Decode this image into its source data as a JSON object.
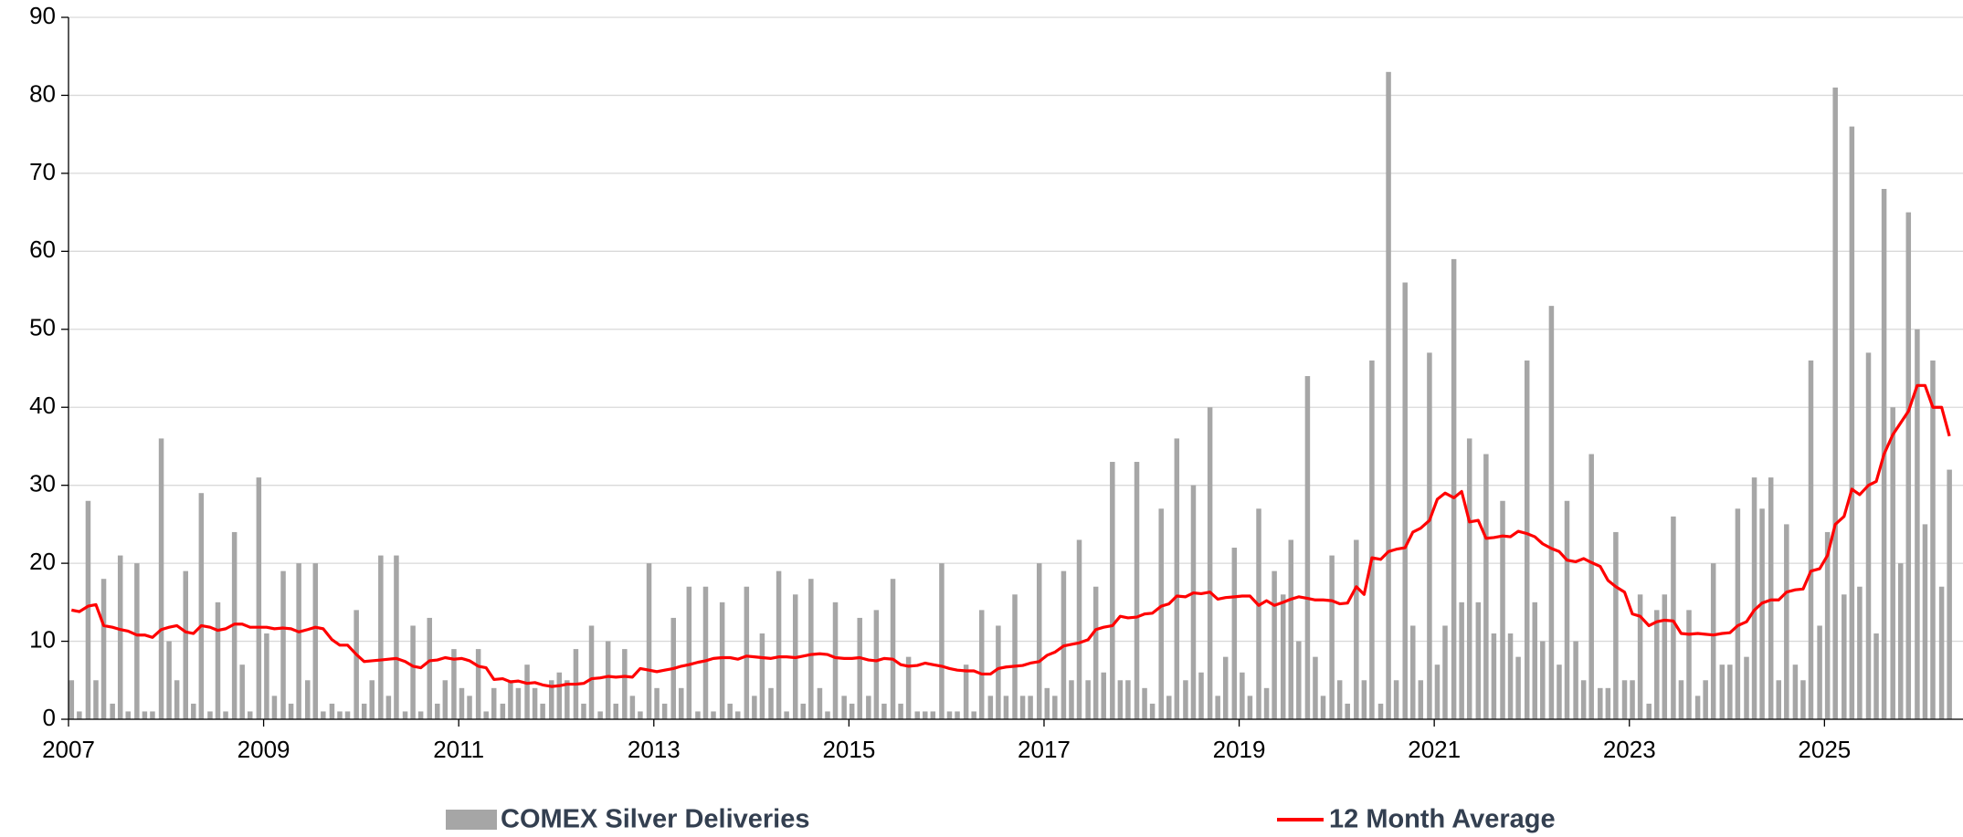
{
  "chart_data": {
    "type": "bar",
    "x": [
      2007,
      2007.08,
      2007.17,
      2007.25,
      2007.33,
      2007.42,
      2007.5,
      2007.58,
      2007.67,
      2007.75,
      2007.83,
      2007.92,
      2008,
      2008.08,
      2008.17,
      2008.25,
      2008.33,
      2008.42,
      2008.5,
      2008.58,
      2008.67,
      2008.75,
      2008.83,
      2008.92,
      2009,
      2009.08,
      2009.17,
      2009.25,
      2009.33,
      2009.42,
      2009.5,
      2009.58,
      2009.67,
      2009.75,
      2009.83,
      2009.92,
      2010,
      2010.08,
      2010.17,
      2010.25,
      2010.33,
      2010.42,
      2010.5,
      2010.58,
      2010.67,
      2010.75,
      2010.83,
      2010.92,
      2011,
      2011.08,
      2011.17,
      2011.25,
      2011.33,
      2011.42,
      2011.5,
      2011.58,
      2011.67,
      2011.75,
      2011.83,
      2011.92,
      2012,
      2012.08,
      2012.17,
      2012.25,
      2012.33,
      2012.42,
      2012.5,
      2012.58,
      2012.67,
      2012.75,
      2012.83,
      2012.92,
      2013,
      2013.08,
      2013.17,
      2013.25,
      2013.33,
      2013.42,
      2013.5,
      2013.58,
      2013.67,
      2013.75,
      2013.83,
      2013.92,
      2014,
      2014.08,
      2014.17,
      2014.25,
      2014.33,
      2014.42,
      2014.5,
      2014.58,
      2014.67,
      2014.75,
      2014.83,
      2014.92,
      2015,
      2015.08,
      2015.17,
      2015.25,
      2015.33,
      2015.42,
      2015.5,
      2015.58,
      2015.67,
      2015.75,
      2015.83,
      2015.92,
      2016,
      2016.08,
      2016.17,
      2016.25,
      2016.33,
      2016.42,
      2016.5,
      2016.58,
      2016.67,
      2016.75,
      2016.83,
      2016.92,
      2017,
      2017.08,
      2017.17,
      2017.25,
      2017.33,
      2017.42,
      2017.5,
      2017.58,
      2017.67,
      2017.75,
      2017.83,
      2017.92,
      2018,
      2018.08,
      2018.17,
      2018.25,
      2018.33,
      2018.42,
      2018.5,
      2018.58,
      2018.67,
      2018.75,
      2018.83,
      2018.92,
      2019,
      2019.08,
      2019.17,
      2019.25,
      2019.33,
      2019.42,
      2019.5,
      2019.58,
      2019.67,
      2019.75,
      2019.83,
      2019.92,
      2020,
      2020.08,
      2020.17,
      2020.25,
      2020.33,
      2020.42,
      2020.5,
      2020.58,
      2020.67,
      2020.75,
      2020.83,
      2020.92,
      2021,
      2021.08,
      2021.17,
      2021.25,
      2021.33,
      2021.42,
      2021.5,
      2021.58,
      2021.67,
      2021.75,
      2021.83,
      2021.92,
      2022,
      2022.08,
      2022.17,
      2022.25,
      2022.33,
      2022.42,
      2022.5,
      2022.58,
      2022.67,
      2022.75,
      2022.83,
      2022.92,
      2023,
      2023.08,
      2023.17,
      2023.25,
      2023.33,
      2023.42,
      2023.5,
      2023.58,
      2023.67,
      2023.75,
      2023.83,
      2023.92,
      2024,
      2024.08,
      2024.17,
      2024.25,
      2024.33,
      2024.42,
      2024.5,
      2024.58,
      2024.67,
      2024.75,
      2024.83,
      2024.92,
      2025,
      2025.08,
      2025.17,
      2025.25,
      2025.33,
      2025.42,
      2025.5,
      2025.58,
      2025.67,
      2025.75,
      2025.83,
      2025.92,
      2026,
      2026.08,
      2026.17,
      2026.25
    ],
    "series": [
      {
        "name": "COMEX Silver Deliveries",
        "type": "bar",
        "color": "#a6a6a6",
        "values": [
          5,
          1,
          28,
          5,
          18,
          2,
          21,
          1,
          20,
          1,
          1,
          36,
          10,
          5,
          19,
          2,
          29,
          1,
          15,
          1,
          24,
          7,
          1,
          31,
          11,
          3,
          19,
          2,
          20,
          5,
          20,
          1,
          2,
          1,
          1,
          14,
          2,
          5,
          21,
          3,
          21,
          1,
          12,
          1,
          13,
          2,
          5,
          9,
          4,
          3,
          9,
          1,
          4,
          2,
          5,
          4,
          7,
          4,
          2,
          5,
          6,
          5,
          9,
          2,
          12,
          1,
          10,
          2,
          9,
          3,
          1,
          20,
          4,
          2,
          13,
          4,
          17,
          1,
          17,
          1,
          15,
          2,
          1,
          17,
          3,
          11,
          4,
          19,
          1,
          16,
          2,
          18,
          4,
          1,
          15,
          3,
          2,
          13,
          3,
          14,
          2,
          18,
          2,
          8,
          1,
          1,
          1,
          20,
          1,
          1,
          7,
          1,
          14,
          3,
          12,
          3,
          16,
          3,
          3,
          20,
          4,
          3,
          19,
          5,
          23,
          5,
          17,
          6,
          33,
          5,
          5,
          33,
          4,
          2,
          27,
          3,
          36,
          5,
          30,
          6,
          40,
          3,
          8,
          22,
          6,
          3,
          27,
          4,
          19,
          16,
          23,
          10,
          44,
          8,
          3,
          21,
          5,
          2,
          23,
          5,
          46,
          2,
          83,
          5,
          56,
          12,
          5,
          47,
          7,
          12,
          59,
          15,
          36,
          15,
          34,
          11,
          28,
          11,
          8,
          46,
          15,
          10,
          53,
          7,
          28,
          10,
          5,
          34,
          4,
          4,
          24,
          5,
          5,
          16,
          2,
          14,
          16,
          26,
          5,
          14,
          3,
          5,
          20,
          7,
          7,
          27,
          8,
          31,
          27,
          31,
          5,
          25,
          7,
          5,
          46,
          12,
          24,
          81,
          16,
          76,
          17,
          47,
          11,
          68,
          40,
          20,
          65,
          50,
          25,
          46,
          17,
          32
        ]
      },
      {
        "name": "12 Month Average",
        "type": "line",
        "color": "#ff0000",
        "values": [
          14,
          13.8,
          14.5,
          14.7,
          12,
          11.8,
          11.5,
          11.3,
          10.8,
          10.8,
          10.5,
          11.5,
          11.8,
          12,
          11.2,
          11,
          12,
          11.8,
          11.4,
          11.6,
          12.2,
          12.2,
          11.8,
          11.8,
          11.8,
          11.6,
          11.7,
          11.6,
          11.2,
          11.5,
          11.8,
          11.6,
          10.2,
          9.5,
          9.5,
          8.3,
          7.4,
          7.5,
          7.6,
          7.7,
          7.8,
          7.4,
          6.8,
          6.6,
          7.5,
          7.6,
          7.9,
          7.7,
          7.8,
          7.5,
          6.8,
          6.6,
          5.1,
          5.2,
          4.8,
          4.9,
          4.6,
          4.7,
          4.4,
          4.2,
          4.3,
          4.5,
          4.5,
          4.6,
          5.2,
          5.3,
          5.5,
          5.4,
          5.5,
          5.4,
          6.5,
          6.3,
          6.1,
          6.3,
          6.5,
          6.8,
          7,
          7.3,
          7.5,
          7.8,
          7.9,
          7.9,
          7.7,
          8.1,
          8,
          7.9,
          7.8,
          8,
          8,
          7.9,
          8.1,
          8.3,
          8.4,
          8.3,
          7.9,
          7.8,
          7.8,
          7.9,
          7.6,
          7.5,
          7.8,
          7.7,
          7,
          6.8,
          6.9,
          7.2,
          7,
          6.8,
          6.5,
          6.3,
          6.2,
          6.2,
          5.8,
          5.8,
          6.5,
          6.7,
          6.8,
          6.9,
          7.2,
          7.4,
          8.2,
          8.6,
          9.4,
          9.6,
          9.8,
          10.2,
          11.5,
          11.8,
          12,
          13.2,
          13,
          13.1,
          13.5,
          13.6,
          14.5,
          14.8,
          15.8,
          15.7,
          16.2,
          16.1,
          16.3,
          15.4,
          15.6,
          15.7,
          15.8,
          15.8,
          14.6,
          15.2,
          14.6,
          15,
          15.4,
          15.7,
          15.5,
          15.3,
          15.3,
          15.2,
          14.8,
          14.9,
          17,
          16,
          20.7,
          20.5,
          21.5,
          21.8,
          22,
          24,
          24.5,
          25.5,
          28.2,
          29,
          28.4,
          29.2,
          25.3,
          25.5,
          23.2,
          23.3,
          23.5,
          23.4,
          24.1,
          23.8,
          23.4,
          22.5,
          21.9,
          21.5,
          20.4,
          20.2,
          20.6,
          20.1,
          19.6,
          17.8,
          17,
          16.3,
          13.5,
          13.2,
          12,
          12.5,
          12.7,
          12.6,
          11,
          10.9,
          11,
          10.9,
          10.8,
          11,
          11.1,
          12,
          12.5,
          14,
          14.9,
          15.3,
          15.3,
          16.3,
          16.6,
          16.7,
          19,
          19.3,
          21,
          25,
          26,
          29.5,
          28.8,
          30,
          30.5,
          34,
          36.5,
          38,
          39.5,
          42.8,
          42.8,
          40,
          40,
          36.3
        ]
      }
    ],
    "xlim": [
      2007,
      2026.42
    ],
    "xticks": [
      2007,
      2009,
      2011,
      2013,
      2015,
      2017,
      2019,
      2021,
      2023,
      2025
    ],
    "ylim": [
      0,
      90
    ],
    "yticks": [
      0,
      10,
      20,
      30,
      40,
      50,
      60,
      70,
      80,
      90
    ],
    "grid": true,
    "legend": "bottom"
  }
}
